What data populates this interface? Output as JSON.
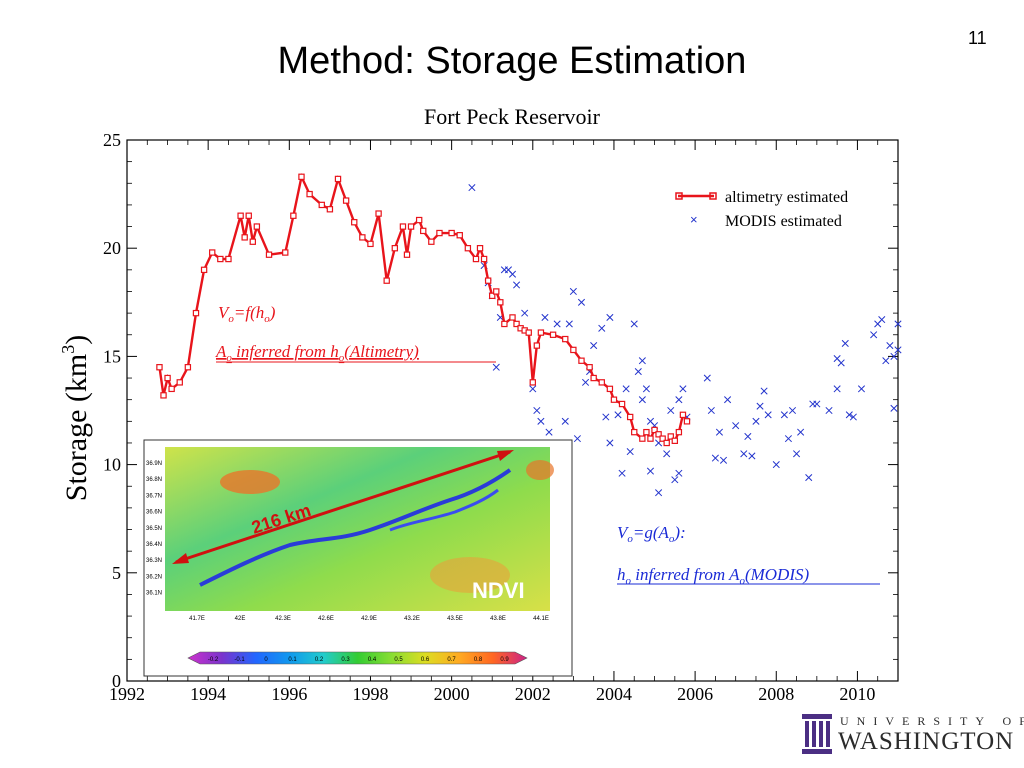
{
  "slide": {
    "number": "11",
    "title": "Method: Storage Estimation"
  },
  "logo": {
    "line1": "UNIVERSITY OF",
    "line2": "WASHINGTON",
    "icon": "uw-column-icon"
  },
  "chart_data": {
    "type": "line",
    "title": "Fort Peck Reservoir",
    "xlabel": "",
    "ylabel": "Storage (km",
    "ylabel_superscript": "3",
    "ylabel_close": ")",
    "xlim": [
      1992,
      2011
    ],
    "ylim": [
      0,
      25
    ],
    "xticks": [
      1992,
      1994,
      1996,
      1998,
      2000,
      2002,
      2004,
      2006,
      2008,
      2010
    ],
    "yticks": [
      0,
      5,
      10,
      15,
      20,
      25
    ],
    "legend_position": "top-right",
    "series": [
      {
        "name": "altimetry estimated",
        "style": "line-marker",
        "color": "#e8141b",
        "points": [
          [
            1992.8,
            14.5
          ],
          [
            1992.9,
            13.2
          ],
          [
            1993.0,
            14.0
          ],
          [
            1993.1,
            13.5
          ],
          [
            1993.3,
            13.8
          ],
          [
            1993.5,
            14.5
          ],
          [
            1993.7,
            17.0
          ],
          [
            1993.9,
            19.0
          ],
          [
            1994.1,
            19.8
          ],
          [
            1994.3,
            19.5
          ],
          [
            1994.5,
            19.5
          ],
          [
            1994.8,
            21.5
          ],
          [
            1994.9,
            20.5
          ],
          [
            1995.0,
            21.5
          ],
          [
            1995.1,
            20.3
          ],
          [
            1995.2,
            21.0
          ],
          [
            1995.5,
            19.7
          ],
          [
            1995.9,
            19.8
          ],
          [
            1996.1,
            21.5
          ],
          [
            1996.3,
            23.3
          ],
          [
            1996.5,
            22.5
          ],
          [
            1996.8,
            22.0
          ],
          [
            1997.0,
            21.8
          ],
          [
            1997.2,
            23.2
          ],
          [
            1997.4,
            22.2
          ],
          [
            1997.6,
            21.2
          ],
          [
            1997.8,
            20.5
          ],
          [
            1998.0,
            20.2
          ],
          [
            1998.2,
            21.6
          ],
          [
            1998.4,
            18.5
          ],
          [
            1998.6,
            20.0
          ],
          [
            1998.8,
            21.0
          ],
          [
            1998.9,
            19.7
          ],
          [
            1999.0,
            21.0
          ],
          [
            1999.2,
            21.3
          ],
          [
            1999.3,
            20.8
          ],
          [
            1999.5,
            20.3
          ],
          [
            1999.7,
            20.7
          ],
          [
            2000.0,
            20.7
          ],
          [
            2000.2,
            20.6
          ],
          [
            2000.4,
            20.0
          ],
          [
            2000.6,
            19.5
          ],
          [
            2000.7,
            20.0
          ],
          [
            2000.8,
            19.5
          ],
          [
            2000.9,
            18.5
          ],
          [
            2001.0,
            17.8
          ],
          [
            2001.1,
            18.0
          ],
          [
            2001.2,
            17.5
          ],
          [
            2001.3,
            16.5
          ],
          [
            2001.5,
            16.8
          ],
          [
            2001.6,
            16.5
          ],
          [
            2001.7,
            16.3
          ],
          [
            2001.8,
            16.2
          ],
          [
            2001.9,
            16.1
          ],
          [
            2002.0,
            13.8
          ],
          [
            2002.1,
            15.5
          ],
          [
            2002.2,
            16.1
          ],
          [
            2002.5,
            16.0
          ],
          [
            2002.8,
            15.8
          ],
          [
            2003.0,
            15.3
          ],
          [
            2003.2,
            14.8
          ],
          [
            2003.4,
            14.5
          ],
          [
            2003.5,
            14.0
          ],
          [
            2003.7,
            13.8
          ],
          [
            2003.9,
            13.5
          ],
          [
            2004.0,
            13.0
          ],
          [
            2004.2,
            12.8
          ],
          [
            2004.4,
            12.2
          ],
          [
            2004.5,
            11.5
          ],
          [
            2004.7,
            11.2
          ],
          [
            2004.8,
            11.5
          ],
          [
            2004.9,
            11.2
          ],
          [
            2005.0,
            11.6
          ],
          [
            2005.1,
            11.4
          ],
          [
            2005.2,
            11.2
          ],
          [
            2005.3,
            11.0
          ],
          [
            2005.4,
            11.3
          ],
          [
            2005.5,
            11.1
          ],
          [
            2005.6,
            11.5
          ],
          [
            2005.7,
            12.3
          ],
          [
            2005.8,
            12.0
          ]
        ]
      },
      {
        "name": "MODIS estimated",
        "style": "x-marker",
        "color": "#2233cc",
        "points": [
          [
            2000.5,
            22.8
          ],
          [
            2000.8,
            19.2
          ],
          [
            2000.9,
            18.4
          ],
          [
            2001.0,
            17.8
          ],
          [
            2001.2,
            16.8
          ],
          [
            2001.3,
            19.0
          ],
          [
            2001.4,
            19.0
          ],
          [
            2001.5,
            18.8
          ],
          [
            2001.6,
            18.3
          ],
          [
            2001.8,
            17.0
          ],
          [
            2002.0,
            13.5
          ],
          [
            2002.1,
            12.5
          ],
          [
            2002.3,
            16.8
          ],
          [
            2002.6,
            16.5
          ],
          [
            2002.9,
            16.5
          ],
          [
            2003.0,
            18.0
          ],
          [
            2003.2,
            17.5
          ],
          [
            2003.3,
            13.8
          ],
          [
            2003.5,
            15.5
          ],
          [
            2003.7,
            16.3
          ],
          [
            2003.9,
            16.8
          ],
          [
            2004.1,
            12.3
          ],
          [
            2004.3,
            13.5
          ],
          [
            2004.5,
            16.5
          ],
          [
            2004.7,
            13.0
          ],
          [
            2004.8,
            13.5
          ],
          [
            2004.9,
            12.0
          ],
          [
            2005.0,
            11.8
          ],
          [
            2005.1,
            11.0
          ],
          [
            2005.3,
            10.5
          ],
          [
            2005.5,
            9.3
          ],
          [
            2005.6,
            13.0
          ],
          [
            2005.7,
            13.5
          ],
          [
            2005.8,
            12.2
          ],
          [
            2002.4,
            11.5
          ],
          [
            2002.8,
            12.0
          ],
          [
            2003.1,
            11.2
          ],
          [
            2003.4,
            14.3
          ],
          [
            2003.8,
            12.2
          ],
          [
            2003.9,
            11.0
          ],
          [
            2004.2,
            9.6
          ],
          [
            2004.4,
            10.6
          ],
          [
            2004.6,
            14.3
          ],
          [
            2004.7,
            14.8
          ],
          [
            2004.9,
            9.7
          ],
          [
            2005.1,
            8.7
          ],
          [
            2005.4,
            12.5
          ],
          [
            2005.6,
            9.6
          ],
          [
            2001.1,
            14.5
          ],
          [
            2002.2,
            12.0
          ],
          [
            2006.3,
            14.0
          ],
          [
            2006.4,
            12.5
          ],
          [
            2006.5,
            10.3
          ],
          [
            2006.6,
            11.5
          ],
          [
            2006.7,
            10.2
          ],
          [
            2006.8,
            13.0
          ],
          [
            2007.0,
            11.8
          ],
          [
            2007.2,
            10.5
          ],
          [
            2007.3,
            11.3
          ],
          [
            2007.5,
            12.0
          ],
          [
            2007.6,
            12.7
          ],
          [
            2007.7,
            13.4
          ],
          [
            2007.8,
            12.3
          ],
          [
            2008.0,
            10.0
          ],
          [
            2008.2,
            12.3
          ],
          [
            2008.3,
            11.2
          ],
          [
            2008.4,
            12.5
          ],
          [
            2008.5,
            10.5
          ],
          [
            2008.6,
            11.5
          ],
          [
            2008.8,
            9.4
          ],
          [
            2008.9,
            12.8
          ],
          [
            2009.3,
            12.5
          ],
          [
            2009.5,
            13.5
          ],
          [
            2009.6,
            14.7
          ],
          [
            2009.7,
            15.6
          ],
          [
            2009.8,
            12.3
          ],
          [
            2009.9,
            12.2
          ],
          [
            2010.1,
            13.5
          ],
          [
            2010.4,
            16.0
          ],
          [
            2010.5,
            16.5
          ],
          [
            2010.6,
            16.7
          ],
          [
            2010.7,
            14.8
          ],
          [
            2010.8,
            15.5
          ],
          [
            2010.9,
            15.0
          ],
          [
            2011.0,
            16.5
          ],
          [
            2010.9,
            12.6
          ],
          [
            2011.0,
            15.3
          ],
          [
            2009.5,
            14.9
          ],
          [
            2009.0,
            12.8
          ],
          [
            2007.4,
            10.4
          ]
        ]
      }
    ],
    "annotations": {
      "vo_altimetry": "V",
      "vo_altimetry_sub": "o",
      "vo_altimetry_rest": "=f(h",
      "vo_altimetry_sub2": "o",
      "vo_altimetry_end": ")",
      "ao_line_a": "A",
      "ao_line_sub": "o",
      "ao_line_mid": " inferred from h",
      "ao_line_sub2": "o",
      "ao_line_end": "(Altimetry)",
      "vo_modis": "V",
      "vo_modis_sub": "o",
      "vo_modis_rest": "=g(A",
      "vo_modis_sub2": "o",
      "vo_modis_end": "):",
      "ho_line_h": "h",
      "ho_line_sub": "o",
      "ho_line_mid": " inferred from A",
      "ho_line_sub2": "o",
      "ho_line_end": "(MODIS)"
    },
    "inset": {
      "label": "NDVI",
      "distance": "216 km",
      "lat_ticks": [
        "36.9N",
        "36.8N",
        "36.7N",
        "36.6N",
        "36.5N",
        "36.4N",
        "36.3N",
        "36.2N",
        "36.1N"
      ],
      "lon_ticks": [
        "41.7E",
        "42E",
        "42.3E",
        "42.6E",
        "42.9E",
        "43.2E",
        "43.5E",
        "43.8E",
        "44.1E"
      ],
      "colorbar_ticks": [
        "-0.2",
        "-0.1",
        "0",
        "0.1",
        "0.2",
        "0.3",
        "0.4",
        "0.5",
        "0.6",
        "0.7",
        "0.8",
        "0.9"
      ],
      "colorbar_colors": [
        "#cc33cc",
        "#7a33cc",
        "#2266ff",
        "#1199ee",
        "#22cccc",
        "#22cc88",
        "#33cc33",
        "#88dd33",
        "#dddd22",
        "#ffaa22",
        "#ff6622",
        "#ee2222",
        "#cc2288"
      ]
    }
  }
}
